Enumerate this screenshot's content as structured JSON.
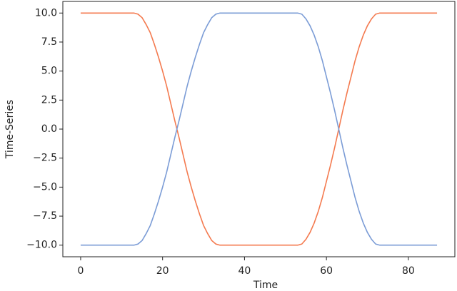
{
  "chart_data": {
    "type": "line",
    "x_label": "Time",
    "y_label": "Time-Series",
    "x": [
      0,
      1,
      2,
      3,
      4,
      5,
      6,
      7,
      8,
      9,
      10,
      11,
      12,
      13,
      14,
      15,
      16,
      17,
      18,
      19,
      20,
      21,
      22,
      23,
      24,
      25,
      26,
      27,
      28,
      29,
      30,
      31,
      32,
      33,
      34,
      35,
      36,
      37,
      38,
      39,
      40,
      41,
      42,
      43,
      44,
      45,
      46,
      47,
      48,
      49,
      50,
      51,
      52,
      53,
      54,
      55,
      56,
      57,
      58,
      59,
      60,
      61,
      62,
      63,
      64,
      65,
      66,
      67,
      68,
      69,
      70,
      71,
      72,
      73,
      74,
      75,
      76,
      77,
      78,
      79,
      80,
      81,
      82,
      83,
      84,
      85,
      86,
      87
    ],
    "series": [
      {
        "color": "#f47a4f",
        "values": [
          10,
          10,
          10,
          10,
          10,
          10,
          10,
          10,
          10,
          10,
          10,
          10,
          10,
          10,
          9.9,
          9.6,
          9.0,
          8.3,
          7.3,
          6.2,
          5.0,
          3.7,
          2.2,
          0.7,
          -0.7,
          -2.2,
          -3.7,
          -5.0,
          -6.2,
          -7.3,
          -8.3,
          -9.0,
          -9.6,
          -9.9,
          -10,
          -10,
          -10,
          -10,
          -10,
          -10,
          -10,
          -10,
          -10,
          -10,
          -10,
          -10,
          -10,
          -10,
          -10,
          -10,
          -10,
          -10,
          -10,
          -10,
          -9.9,
          -9.5,
          -8.9,
          -8.1,
          -7.1,
          -5.9,
          -4.5,
          -3.1,
          -1.6,
          0,
          1.6,
          3.1,
          4.5,
          5.9,
          7.1,
          8.1,
          8.9,
          9.5,
          9.9,
          10,
          10,
          10,
          10,
          10,
          10,
          10,
          10,
          10,
          10,
          10,
          10,
          10,
          10,
          10
        ]
      },
      {
        "color": "#7b9cd6",
        "values": [
          -10,
          -10,
          -10,
          -10,
          -10,
          -10,
          -10,
          -10,
          -10,
          -10,
          -10,
          -10,
          -10,
          -10,
          -9.9,
          -9.6,
          -9.0,
          -8.3,
          -7.3,
          -6.2,
          -5.0,
          -3.7,
          -2.2,
          -0.7,
          0.7,
          2.2,
          3.7,
          5.0,
          6.2,
          7.3,
          8.3,
          9.0,
          9.6,
          9.9,
          10,
          10,
          10,
          10,
          10,
          10,
          10,
          10,
          10,
          10,
          10,
          10,
          10,
          10,
          10,
          10,
          10,
          10,
          10,
          10,
          9.9,
          9.5,
          8.9,
          8.1,
          7.1,
          5.9,
          4.5,
          3.1,
          1.6,
          0,
          -1.6,
          -3.1,
          -4.5,
          -5.9,
          -7.1,
          -8.1,
          -8.9,
          -9.5,
          -9.9,
          -10,
          -10,
          -10,
          -10,
          -10,
          -10,
          -10,
          -10,
          -10,
          -10,
          -10,
          -10,
          -10,
          -10,
          -10
        ]
      }
    ],
    "xlim": [
      -4.35,
      91.35
    ],
    "ylim": [
      -11,
      11
    ],
    "xticks": [
      0,
      20,
      40,
      60,
      80
    ],
    "yticks": [
      {
        "value": -10,
        "label": "−10.0"
      },
      {
        "value": -7.5,
        "label": "−7.5"
      },
      {
        "value": -5,
        "label": "−5.0"
      },
      {
        "value": -2.5,
        "label": "−2.5"
      },
      {
        "value": 0,
        "label": "0.0"
      },
      {
        "value": 2.5,
        "label": "2.5"
      },
      {
        "value": 5,
        "label": "5.0"
      },
      {
        "value": 7.5,
        "label": "7.5"
      },
      {
        "value": 10,
        "label": "10.0"
      }
    ]
  }
}
